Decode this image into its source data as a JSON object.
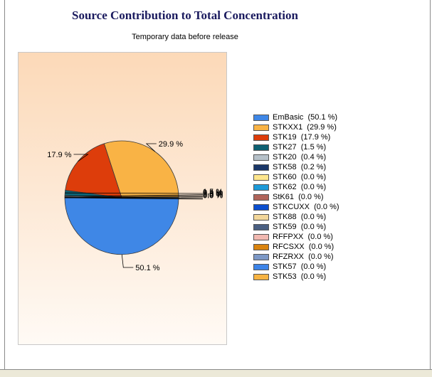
{
  "chart_data": {
    "type": "pie",
    "title": "Source Contribution to Total Concentration",
    "subtitle": "Temporary data before release",
    "slices": [
      {
        "name": "EmBasic",
        "value": 50.1,
        "color": "#3f87e6"
      },
      {
        "name": "STKXX1",
        "value": 29.9,
        "color": "#f9b345"
      },
      {
        "name": "STK19",
        "value": 17.9,
        "color": "#dd3d0b"
      },
      {
        "name": "STK27",
        "value": 1.5,
        "color": "#0e6173"
      },
      {
        "name": "STK20",
        "value": 0.4,
        "color": "#b6c1c9"
      },
      {
        "name": "STK58",
        "value": 0.2,
        "color": "#1a3768"
      },
      {
        "name": "STK60",
        "value": 0.0,
        "color": "#fde68d"
      },
      {
        "name": "STK62",
        "value": 0.0,
        "color": "#1e9ad8"
      },
      {
        "name": "StK61",
        "value": 0.0,
        "color": "#b0645a"
      },
      {
        "name": "STKCUXX",
        "value": 0.0,
        "color": "#0b4fce"
      },
      {
        "name": "STK88",
        "value": 0.0,
        "color": "#f2d69a"
      },
      {
        "name": "STK59",
        "value": 0.0,
        "color": "#4a5f82"
      },
      {
        "name": "RFFPXX",
        "value": 0.0,
        "color": "#f1b8b0"
      },
      {
        "name": "RFCSXX",
        "value": 0.0,
        "color": "#d9840f"
      },
      {
        "name": "RFZRXX",
        "value": 0.0,
        "color": "#7c98c6"
      },
      {
        "name": "STK57",
        "value": 0.0,
        "color": "#3d84e8"
      },
      {
        "name": "STK53",
        "value": 0.0,
        "color": "#f7b342"
      }
    ],
    "legend_labels": [
      "EmBasic  (50.1 %)",
      "STKXX1  (29.9 %)",
      "STK19  (17.9 %)",
      "STK27  (1.5 %)",
      "STK20  (0.4 %)",
      "STK58  (0.2 %)",
      "STK60  (0.0 %)",
      "STK62  (0.0 %)",
      "StK61  (0.0 %)",
      "STKCUXX  (0.0 %)",
      "STK88  (0.0 %)",
      "STK59  (0.0 %)",
      "RFFPXX  (0.0 %)",
      "RFCSXX  (0.0 %)",
      "RFZRXX  (0.0 %)",
      "STK57  (0.0 %)",
      "STK53  (0.0 %)"
    ],
    "data_labels": [
      "50.1 %",
      "29.9 %",
      "17.9 %",
      "1.5 %",
      "0.4 %",
      "0.2 %",
      "0.0 %",
      "0.0 %",
      "0.0 %"
    ],
    "legend_position": "right"
  }
}
